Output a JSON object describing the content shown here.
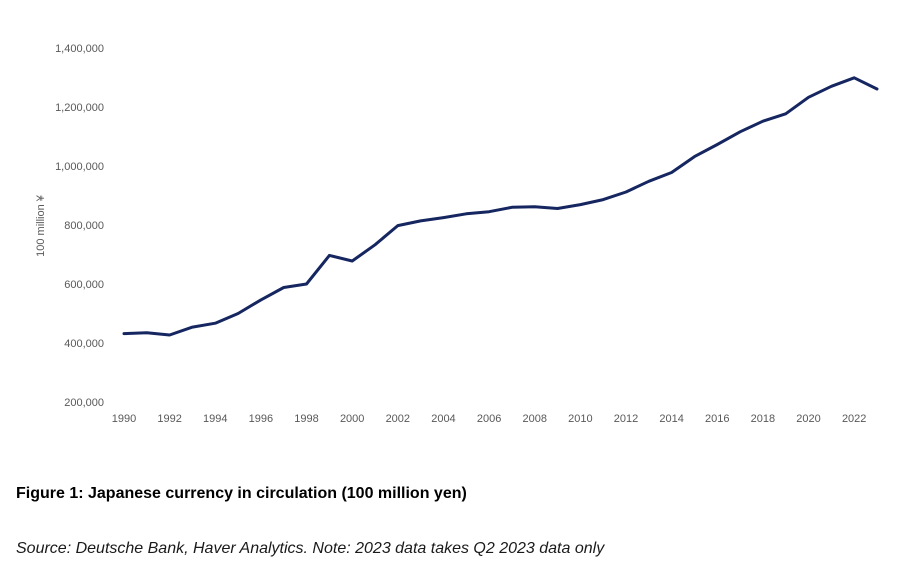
{
  "figure": {
    "caption": "Figure 1: Japanese currency in circulation (100 million yen)",
    "source": "Source: Deutsche Bank, Haver Analytics. Note: 2023 data takes Q2 2023 data only"
  },
  "chart_data": {
    "type": "line",
    "title": "",
    "xlabel": "",
    "ylabel": "100 million ¥",
    "ylim": [
      200000,
      1400000
    ],
    "y_ticks": [
      200000,
      400000,
      600000,
      800000,
      1000000,
      1200000,
      1400000
    ],
    "y_tick_labels": [
      "200,000",
      "400,000",
      "600,000",
      "800,000",
      "1,000,000",
      "1,200,000",
      "1,400,000"
    ],
    "x_ticks": [
      1990,
      1992,
      1994,
      1996,
      1998,
      2000,
      2002,
      2004,
      2006,
      2008,
      2010,
      2012,
      2014,
      2016,
      2018,
      2020,
      2022
    ],
    "x_tick_labels": [
      "1990",
      "1992",
      "1994",
      "1996",
      "1998",
      "2000",
      "2002",
      "2004",
      "2006",
      "2008",
      "2010",
      "2012",
      "2014",
      "2016",
      "2018",
      "2020",
      "2022"
    ],
    "grid": false,
    "line_color": "#152660",
    "x": [
      1990,
      1991,
      1992,
      1993,
      1994,
      1995,
      1996,
      1997,
      1998,
      1999,
      2000,
      2001,
      2002,
      2003,
      2004,
      2005,
      2006,
      2007,
      2008,
      2009,
      2010,
      2011,
      2012,
      2013,
      2014,
      2015,
      2016,
      2017,
      2018,
      2019,
      2020,
      2021,
      2022,
      2023
    ],
    "series": [
      {
        "values": [
          432000,
          435000,
          427000,
          454000,
          467000,
          500000,
          546000,
          588000,
          600000,
          697000,
          678000,
          733000,
          798000,
          814000,
          825000,
          838000,
          845000,
          860000,
          862000,
          856000,
          869000,
          886000,
          912000,
          948000,
          978000,
          1032000,
          1073000,
          1116000,
          1152000,
          1177000,
          1233000,
          1270000,
          1299000,
          1261000
        ]
      }
    ]
  }
}
